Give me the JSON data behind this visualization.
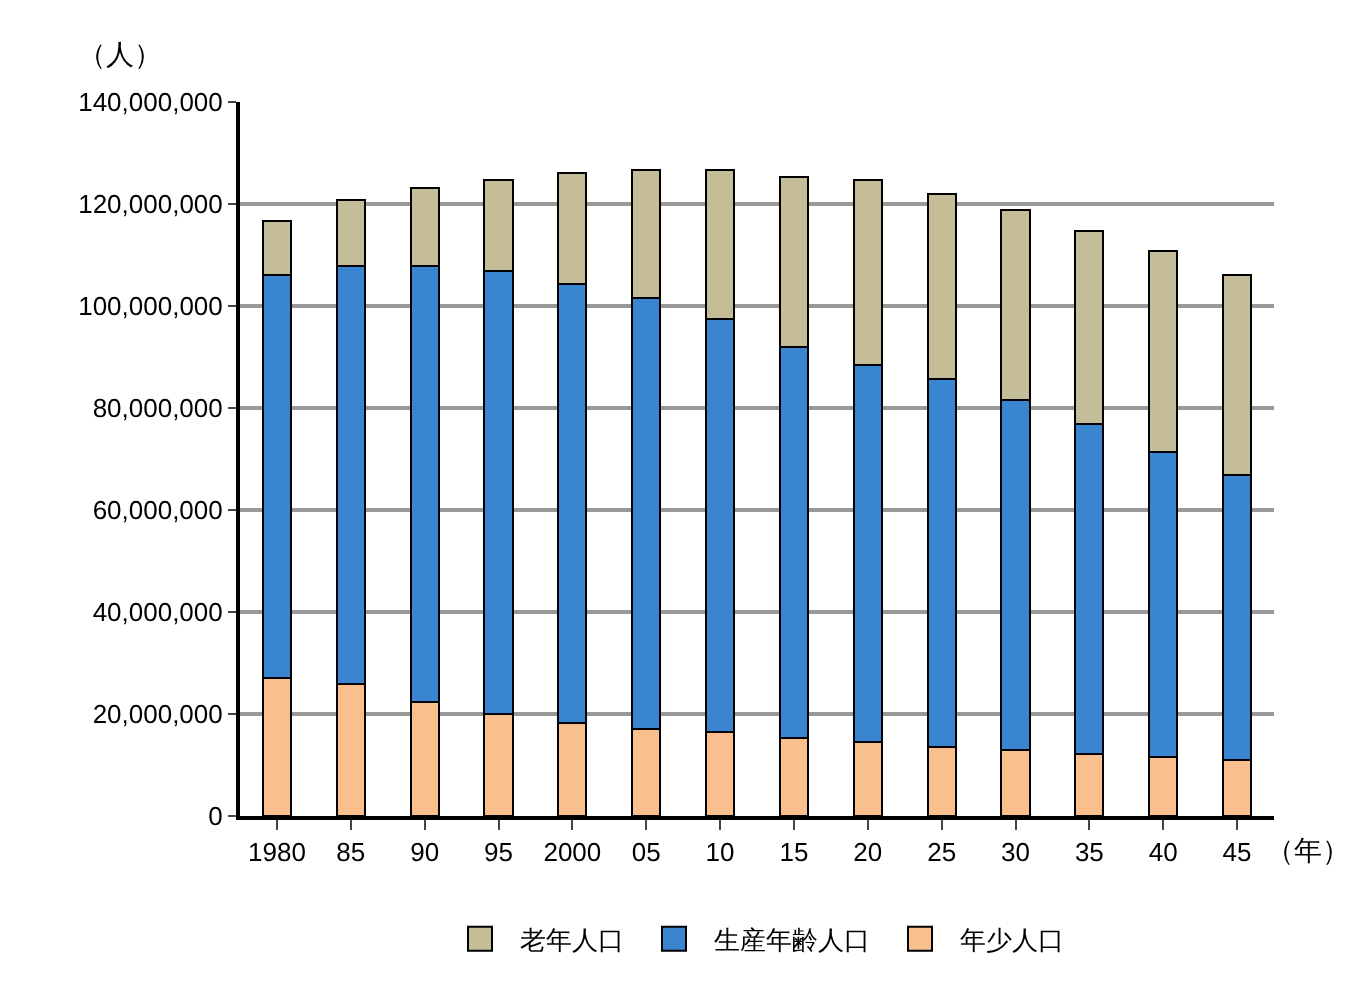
{
  "chart_data": {
    "type": "bar",
    "stacked": true,
    "ylabel": "（人）",
    "xlabel": "（年）",
    "categories": [
      "1980",
      "85",
      "90",
      "95",
      "2000",
      "05",
      "10",
      "15",
      "20",
      "25",
      "30",
      "35",
      "40",
      "45"
    ],
    "series": [
      {
        "name": "年少人口",
        "color": "#f9c08e",
        "values": [
          27000000,
          25900000,
          22400000,
          20000000,
          18300000,
          17000000,
          16400000,
          15200000,
          14500000,
          13500000,
          12900000,
          12200000,
          11600000,
          10900000
        ]
      },
      {
        "name": "生産年齢人口",
        "color": "#3a85d0",
        "values": [
          79100000,
          82000000,
          85500000,
          86800000,
          86000000,
          84500000,
          81000000,
          76800000,
          73900000,
          72100000,
          68600000,
          64600000,
          59800000,
          55900000
        ]
      },
      {
        "name": "老年人口",
        "color": "#c4bd97",
        "values": [
          10600000,
          12900000,
          15200000,
          18000000,
          21700000,
          25200000,
          29300000,
          33300000,
          36300000,
          36300000,
          37400000,
          38000000,
          39300000,
          39200000
        ]
      }
    ],
    "ylim": [
      0,
      140000000
    ],
    "yticks": [
      {
        "value": 0,
        "label": "0"
      },
      {
        "value": 20000000,
        "label": "20,000,000"
      },
      {
        "value": 40000000,
        "label": "40,000,000"
      },
      {
        "value": 60000000,
        "label": "60,000,000"
      },
      {
        "value": 80000000,
        "label": "80,000,000"
      },
      {
        "value": 100000000,
        "label": "100,000,000"
      },
      {
        "value": 120000000,
        "label": "120,000,000"
      },
      {
        "value": 140000000,
        "label": "140,000,000"
      }
    ],
    "grid": "y",
    "legend": "bottom"
  }
}
